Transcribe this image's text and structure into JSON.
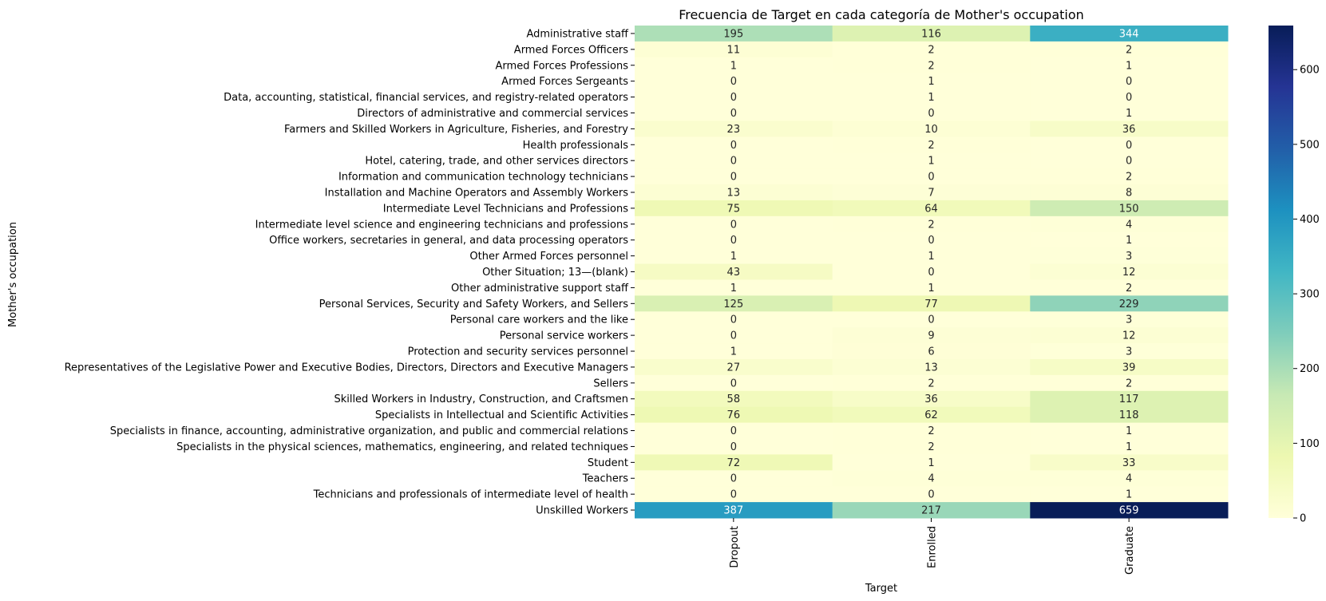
{
  "chart_data": {
    "type": "heatmap",
    "title": "Frecuencia de Target en cada categoría de Mother's occupation",
    "xlabel": "Target",
    "ylabel": "Mother's occupation",
    "columns": [
      "Dropout",
      "Enrolled",
      "Graduate"
    ],
    "rows": [
      "Administrative staff",
      "Armed Forces Officers",
      "Armed Forces Professions",
      "Armed Forces Sergeants",
      "Data, accounting, statistical, financial services, and registry-related operators",
      "Directors of administrative and commercial services",
      "Farmers and Skilled Workers in Agriculture, Fisheries, and Forestry",
      "Health professionals",
      "Hotel, catering, trade, and other services directors",
      "Information and communication technology technicians",
      "Installation and Machine Operators and Assembly Workers",
      "Intermediate Level Technicians and Professions",
      "Intermediate level science and engineering technicians and professions",
      "Office workers, secretaries in general, and data processing operators",
      "Other Armed Forces personnel",
      "Other Situation; 13—(blank)",
      "Other administrative support staff",
      "Personal Services, Security and Safety Workers, and Sellers",
      "Personal care workers and the like",
      "Personal service workers",
      "Protection and security services personnel",
      "Representatives of the Legislative Power and Executive Bodies, Directors, Directors and Executive Managers",
      "Sellers",
      "Skilled Workers in Industry, Construction, and Craftsmen",
      "Specialists in Intellectual and Scientific Activities",
      "Specialists in finance, accounting, administrative organization, and public and commercial relations",
      "Specialists in the physical sciences, mathematics, engineering, and related techniques",
      "Student",
      "Teachers",
      "Technicians and professionals of intermediate level of health",
      "Unskilled Workers"
    ],
    "values": [
      [
        195,
        116,
        344
      ],
      [
        11,
        2,
        2
      ],
      [
        1,
        2,
        1
      ],
      [
        0,
        1,
        0
      ],
      [
        0,
        1,
        0
      ],
      [
        0,
        0,
        1
      ],
      [
        23,
        10,
        36
      ],
      [
        0,
        2,
        0
      ],
      [
        0,
        1,
        0
      ],
      [
        0,
        0,
        2
      ],
      [
        13,
        7,
        8
      ],
      [
        75,
        64,
        150
      ],
      [
        0,
        2,
        4
      ],
      [
        0,
        0,
        1
      ],
      [
        1,
        1,
        3
      ],
      [
        43,
        0,
        12
      ],
      [
        1,
        1,
        2
      ],
      [
        125,
        77,
        229
      ],
      [
        0,
        0,
        3
      ],
      [
        0,
        9,
        12
      ],
      [
        1,
        6,
        3
      ],
      [
        27,
        13,
        39
      ],
      [
        0,
        2,
        2
      ],
      [
        58,
        36,
        117
      ],
      [
        76,
        62,
        118
      ],
      [
        0,
        2,
        1
      ],
      [
        0,
        2,
        1
      ],
      [
        72,
        1,
        33
      ],
      [
        0,
        4,
        4
      ],
      [
        0,
        0,
        1
      ],
      [
        387,
        217,
        659
      ]
    ],
    "colormap": "YlGnBu",
    "colorbar": {
      "min": 0,
      "max": 659,
      "ticks": [
        0,
        100,
        200,
        300,
        400,
        500,
        600
      ]
    }
  }
}
